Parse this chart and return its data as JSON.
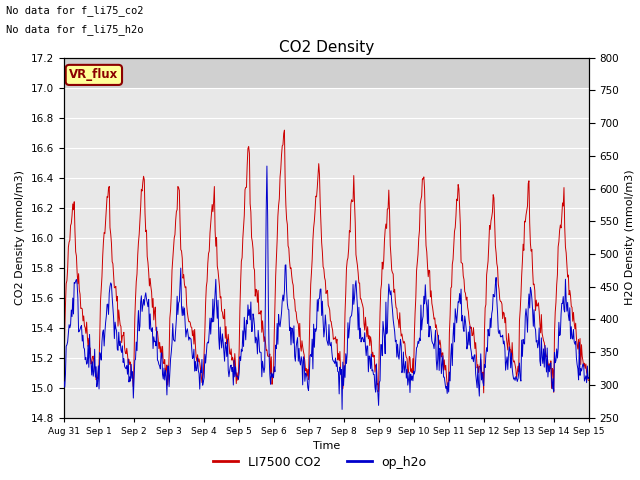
{
  "title": "CO2 Density",
  "xlabel": "Time",
  "ylabel_left": "CO2 Density (mmol/m3)",
  "ylabel_right": "H2O Density (mmol/m3)",
  "ylim_left": [
    14.8,
    17.2
  ],
  "ylim_right": [
    250,
    800
  ],
  "yticks_left": [
    14.8,
    15.0,
    15.2,
    15.4,
    15.6,
    15.8,
    16.0,
    16.2,
    16.4,
    16.6,
    16.8,
    17.0,
    17.2
  ],
  "yticks_right": [
    250,
    300,
    350,
    400,
    450,
    500,
    550,
    600,
    650,
    700,
    750,
    800
  ],
  "xtick_labels": [
    "Aug 31",
    "Sep 1",
    "Sep 2",
    "Sep 3",
    "Sep 4",
    "Sep 5",
    "Sep 6",
    "Sep 7",
    "Sep 8",
    "Sep 9",
    "Sep 10",
    "Sep 11",
    "Sep 12",
    "Sep 13",
    "Sep 14",
    "Sep 15"
  ],
  "text_top_left": [
    "No data for f_li75_co2",
    "No data for f_li75_h2o"
  ],
  "label_box": "VR_flux",
  "legend_entries": [
    "LI7500 CO2",
    "op_h2o"
  ],
  "co2_color": "#cc0000",
  "h2o_color": "#0000cc",
  "fig_bg": "#ffffff",
  "plot_bg": "#e8e8e8",
  "top_band_color": "#d0d0d0",
  "grid_color": "#ffffff",
  "seed": 42
}
